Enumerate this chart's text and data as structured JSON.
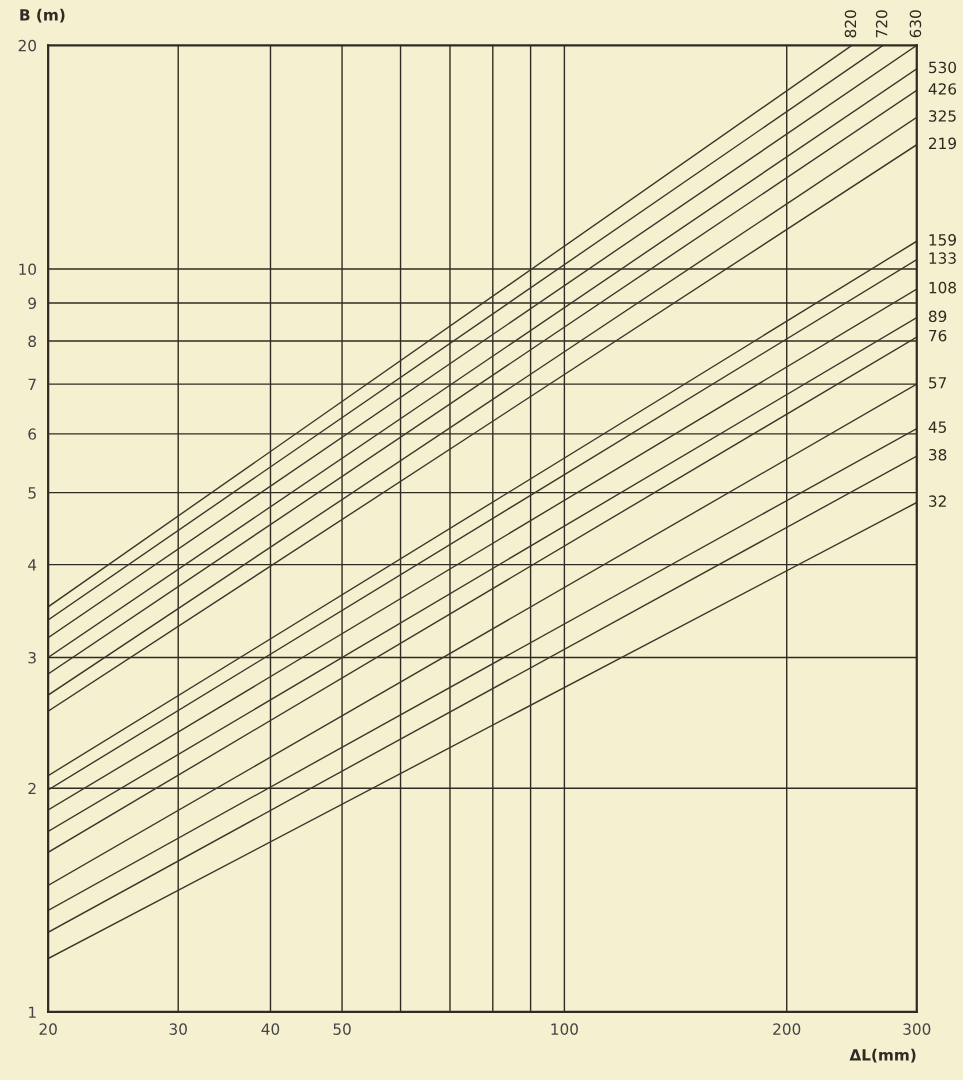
{
  "chart_data": {
    "type": "line",
    "xlabel": "ΔL(mm)",
    "ylabel": "B (m)",
    "log": "xy",
    "grid": true,
    "marker": "none",
    "line_style": "solid",
    "xlim": [
      20,
      300
    ],
    "ylim": [
      1,
      20
    ],
    "xticks": [
      20,
      30,
      40,
      50,
      {
        "value": 60,
        "label": null
      },
      {
        "value": 70,
        "label": null
      },
      {
        "value": 80,
        "label": null
      },
      {
        "value": 90,
        "label": null
      },
      100,
      200,
      300
    ],
    "yticks": [
      1,
      2,
      3,
      4,
      5,
      6,
      7,
      8,
      9,
      10,
      20
    ],
    "series": [
      {
        "name": "820",
        "color": "#3a382c",
        "x": [
          20,
          245
        ],
        "values": [
          3.51,
          20
        ]
      },
      {
        "name": "720",
        "color": "#3a382c",
        "x": [
          20,
          270
        ],
        "values": [
          3.37,
          20
        ]
      },
      {
        "name": "630",
        "color": "#3a382c",
        "x": [
          20,
          300
        ],
        "values": [
          3.19,
          20
        ]
      },
      {
        "name": "530",
        "color": "#3a382c",
        "x": [
          20,
          300
        ],
        "values": [
          3.0,
          18.6
        ]
      },
      {
        "name": "426",
        "color": "#3a382c",
        "x": [
          20,
          300
        ],
        "values": [
          2.85,
          17.4
        ]
      },
      {
        "name": "325",
        "color": "#3a382c",
        "x": [
          20,
          300
        ],
        "values": [
          2.67,
          16.0
        ]
      },
      {
        "name": "219",
        "color": "#3a382c",
        "x": [
          20,
          300
        ],
        "values": [
          2.54,
          14.7
        ]
      },
      {
        "name": "159",
        "color": "#3a382c",
        "x": [
          20,
          300
        ],
        "values": [
          2.08,
          10.9
        ]
      },
      {
        "name": "133",
        "color": "#3a382c",
        "x": [
          20,
          300
        ],
        "values": [
          1.99,
          10.3
        ]
      },
      {
        "name": "108",
        "color": "#3a382c",
        "x": [
          20,
          300
        ],
        "values": [
          1.87,
          9.4
        ]
      },
      {
        "name": "89",
        "color": "#3a382c",
        "x": [
          20,
          300
        ],
        "values": [
          1.75,
          8.6
        ]
      },
      {
        "name": "76",
        "color": "#3a382c",
        "x": [
          20,
          300
        ],
        "values": [
          1.64,
          8.1
        ]
      },
      {
        "name": "57",
        "color": "#3a382c",
        "x": [
          20,
          300
        ],
        "values": [
          1.48,
          7.0
        ]
      },
      {
        "name": "45",
        "color": "#3a382c",
        "x": [
          20,
          300
        ],
        "values": [
          1.37,
          6.1
        ]
      },
      {
        "name": "38",
        "color": "#3a382c",
        "x": [
          20,
          300
        ],
        "values": [
          1.28,
          5.6
        ]
      },
      {
        "name": "32",
        "color": "#3a382c",
        "x": [
          20,
          300
        ],
        "values": [
          1.18,
          4.85
        ]
      }
    ]
  }
}
